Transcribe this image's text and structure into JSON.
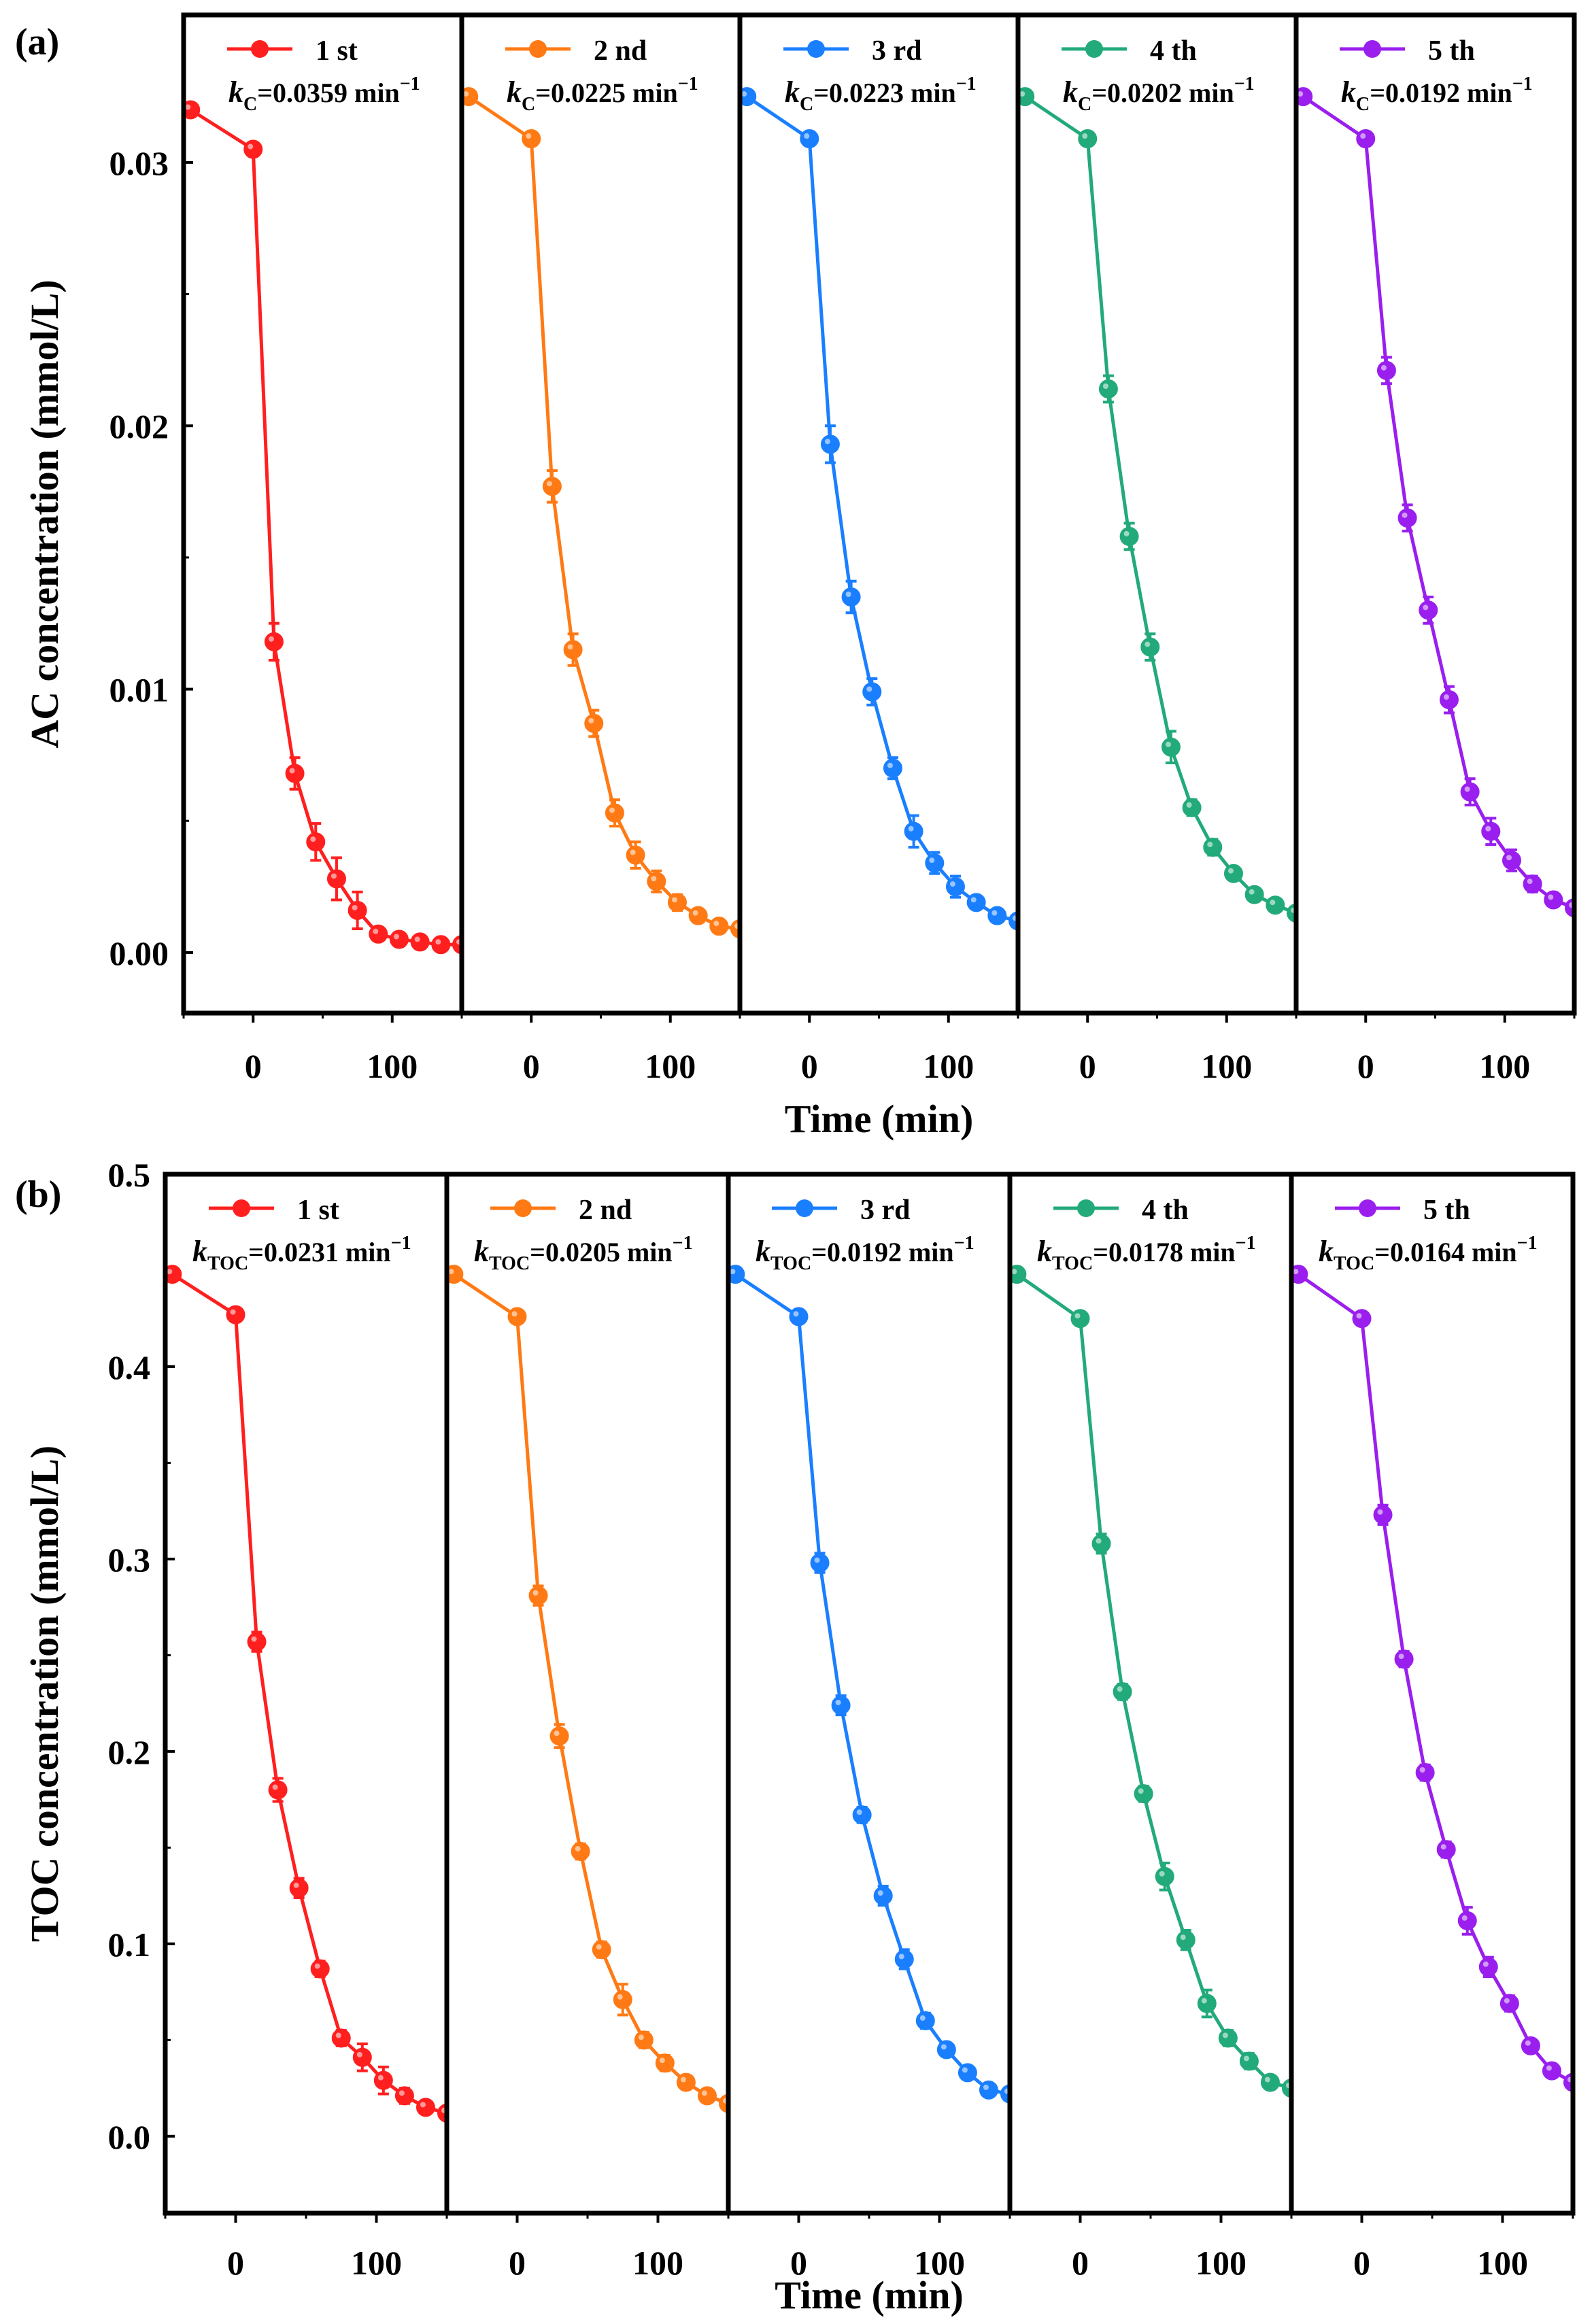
{
  "chart_data": [
    {
      "type": "line",
      "panel_label": "(a)",
      "ylabel": "AC concentration (mmol/L)",
      "xlabel": "Time (min)",
      "ylim": [
        -0.0023,
        0.0356
      ],
      "xlim": [
        -50,
        150
      ],
      "yticks": [
        0.0,
        0.01,
        0.02,
        0.03
      ],
      "ytick_labels": [
        "0.00",
        "0.01",
        "0.02",
        "0.03"
      ],
      "xticks": [
        0,
        100
      ],
      "xtick_labels": [
        "0",
        "100"
      ],
      "x": [
        -45,
        0,
        15,
        30,
        45,
        60,
        75,
        90,
        105,
        120,
        135,
        150
      ],
      "series": [
        {
          "name": "1 st",
          "color": "#ff1f1f",
          "rate_symbol": "k",
          "rate_sub": "C",
          "rate_value": "=0.0359 min",
          "rate_unit_sup": "−1",
          "values": [
            0.032,
            0.0305,
            0.0118,
            0.0068,
            0.0042,
            0.0028,
            0.0016,
            0.0007,
            0.0005,
            0.0004,
            0.0003,
            0.0003
          ],
          "errors": [
            0,
            0,
            0.0007,
            0.0006,
            0.0007,
            0.0008,
            0.0007,
            0.0002,
            0.0001,
            0.0001,
            0.0001,
            0.0001
          ]
        },
        {
          "name": "2 nd",
          "color": "#ff7a14",
          "rate_symbol": "k",
          "rate_sub": "C",
          "rate_value": "=0.0225 min",
          "rate_unit_sup": "−1",
          "values": [
            0.0325,
            0.0309,
            0.0177,
            0.0115,
            0.0087,
            0.0053,
            0.0037,
            0.0027,
            0.0019,
            0.0014,
            0.001,
            0.0009
          ],
          "errors": [
            0,
            0,
            0.0006,
            0.0006,
            0.0005,
            0.0005,
            0.0005,
            0.0004,
            0.0003,
            0.0002,
            0.0001,
            0.0001
          ]
        },
        {
          "name": "3 rd",
          "color": "#1a7fff",
          "rate_symbol": "k",
          "rate_sub": "C",
          "rate_value": "=0.0223 min",
          "rate_unit_sup": "−1",
          "values": [
            0.0325,
            0.0309,
            0.0193,
            0.0135,
            0.0099,
            0.007,
            0.0046,
            0.0034,
            0.0025,
            0.0019,
            0.0014,
            0.0012
          ],
          "errors": [
            0,
            0,
            0.0007,
            0.0006,
            0.0005,
            0.0004,
            0.0006,
            0.0004,
            0.0004,
            0.0002,
            0.0001,
            0.0001
          ]
        },
        {
          "name": "4 th",
          "color": "#22aa7a",
          "rate_symbol": "k",
          "rate_sub": "C",
          "rate_value": "=0.0202 min",
          "rate_unit_sup": "−1",
          "values": [
            0.0325,
            0.0309,
            0.0214,
            0.0158,
            0.0116,
            0.0078,
            0.0055,
            0.004,
            0.003,
            0.0022,
            0.0018,
            0.0015
          ],
          "errors": [
            0,
            0,
            0.0005,
            0.0005,
            0.0005,
            0.0006,
            0.0003,
            0.0003,
            0.0002,
            0.0002,
            0.0001,
            0.0001
          ]
        },
        {
          "name": "5 th",
          "color": "#9a1fee",
          "rate_symbol": "k",
          "rate_sub": "C",
          "rate_value": "=0.0192 min",
          "rate_unit_sup": "−1",
          "values": [
            0.0325,
            0.0309,
            0.0221,
            0.0165,
            0.013,
            0.0096,
            0.0061,
            0.0046,
            0.0035,
            0.0026,
            0.002,
            0.0017
          ],
          "errors": [
            0,
            0,
            0.0005,
            0.0005,
            0.0005,
            0.0005,
            0.0005,
            0.0005,
            0.0004,
            0.0003,
            0.0002,
            0.0001
          ]
        }
      ]
    },
    {
      "type": "line",
      "panel_label": "(b)",
      "ylabel": "TOC concentration (mmol/L)",
      "xlabel": "Time (min)",
      "ylim": [
        -0.04,
        0.5
      ],
      "xlim": [
        -50,
        150
      ],
      "yticks": [
        0.0,
        0.1,
        0.2,
        0.3,
        0.4,
        0.5
      ],
      "ytick_labels": [
        "0.0",
        "0.1",
        "0.2",
        "0.3",
        "0.4",
        "0.5"
      ],
      "xticks": [
        0,
        100
      ],
      "xtick_labels": [
        "0",
        "100"
      ],
      "x": [
        -45,
        0,
        15,
        30,
        45,
        60,
        75,
        90,
        105,
        120,
        135,
        150
      ],
      "series": [
        {
          "name": "1 st",
          "color": "#ff1f1f",
          "rate_symbol": "k",
          "rate_sub": "TOC",
          "rate_value": "=0.0231 min",
          "rate_unit_sup": "−1",
          "values": [
            0.448,
            0.427,
            0.257,
            0.18,
            0.129,
            0.087,
            0.051,
            0.041,
            0.029,
            0.021,
            0.015,
            0.012
          ],
          "errors": [
            0,
            0,
            0.005,
            0.006,
            0.005,
            0.004,
            0.004,
            0.007,
            0.007,
            0.004,
            0.003,
            0.002
          ]
        },
        {
          "name": "2 nd",
          "color": "#ff7a14",
          "rate_symbol": "k",
          "rate_sub": "TOC",
          "rate_value": "=0.0205 min",
          "rate_unit_sup": "−1",
          "values": [
            0.448,
            0.426,
            0.281,
            0.208,
            0.148,
            0.097,
            0.071,
            0.05,
            0.038,
            0.028,
            0.021,
            0.017
          ],
          "errors": [
            0,
            0,
            0.005,
            0.006,
            0.004,
            0.004,
            0.008,
            0.004,
            0.004,
            0.002,
            0.002,
            0.002
          ]
        },
        {
          "name": "3 rd",
          "color": "#1a7fff",
          "rate_symbol": "k",
          "rate_sub": "TOC",
          "rate_value": "=0.0192 min",
          "rate_unit_sup": "−1",
          "values": [
            0.448,
            0.426,
            0.298,
            0.224,
            0.167,
            0.125,
            0.092,
            0.06,
            0.045,
            0.033,
            0.024,
            0.022
          ],
          "errors": [
            0,
            0,
            0.005,
            0.005,
            0.004,
            0.005,
            0.005,
            0.004,
            0.003,
            0.002,
            0.002,
            0.002
          ]
        },
        {
          "name": "4 th",
          "color": "#22aa7a",
          "rate_symbol": "k",
          "rate_sub": "TOC",
          "rate_value": "=0.0178 min",
          "rate_unit_sup": "−1",
          "values": [
            0.448,
            0.425,
            0.308,
            0.231,
            0.178,
            0.135,
            0.102,
            0.069,
            0.051,
            0.039,
            0.028,
            0.025
          ],
          "errors": [
            0,
            0,
            0.005,
            0.004,
            0.004,
            0.007,
            0.005,
            0.007,
            0.004,
            0.004,
            0.002,
            0.002
          ]
        },
        {
          "name": "5 th",
          "color": "#9a1fee",
          "rate_symbol": "k",
          "rate_sub": "TOC",
          "rate_value": "=0.0164 min",
          "rate_unit_sup": "−1",
          "values": [
            0.448,
            0.425,
            0.323,
            0.248,
            0.189,
            0.149,
            0.112,
            0.088,
            0.069,
            0.047,
            0.034,
            0.028
          ],
          "errors": [
            0,
            0,
            0.005,
            0.004,
            0.004,
            0.004,
            0.007,
            0.005,
            0.004,
            0.003,
            0.002,
            0.002
          ]
        }
      ]
    }
  ]
}
